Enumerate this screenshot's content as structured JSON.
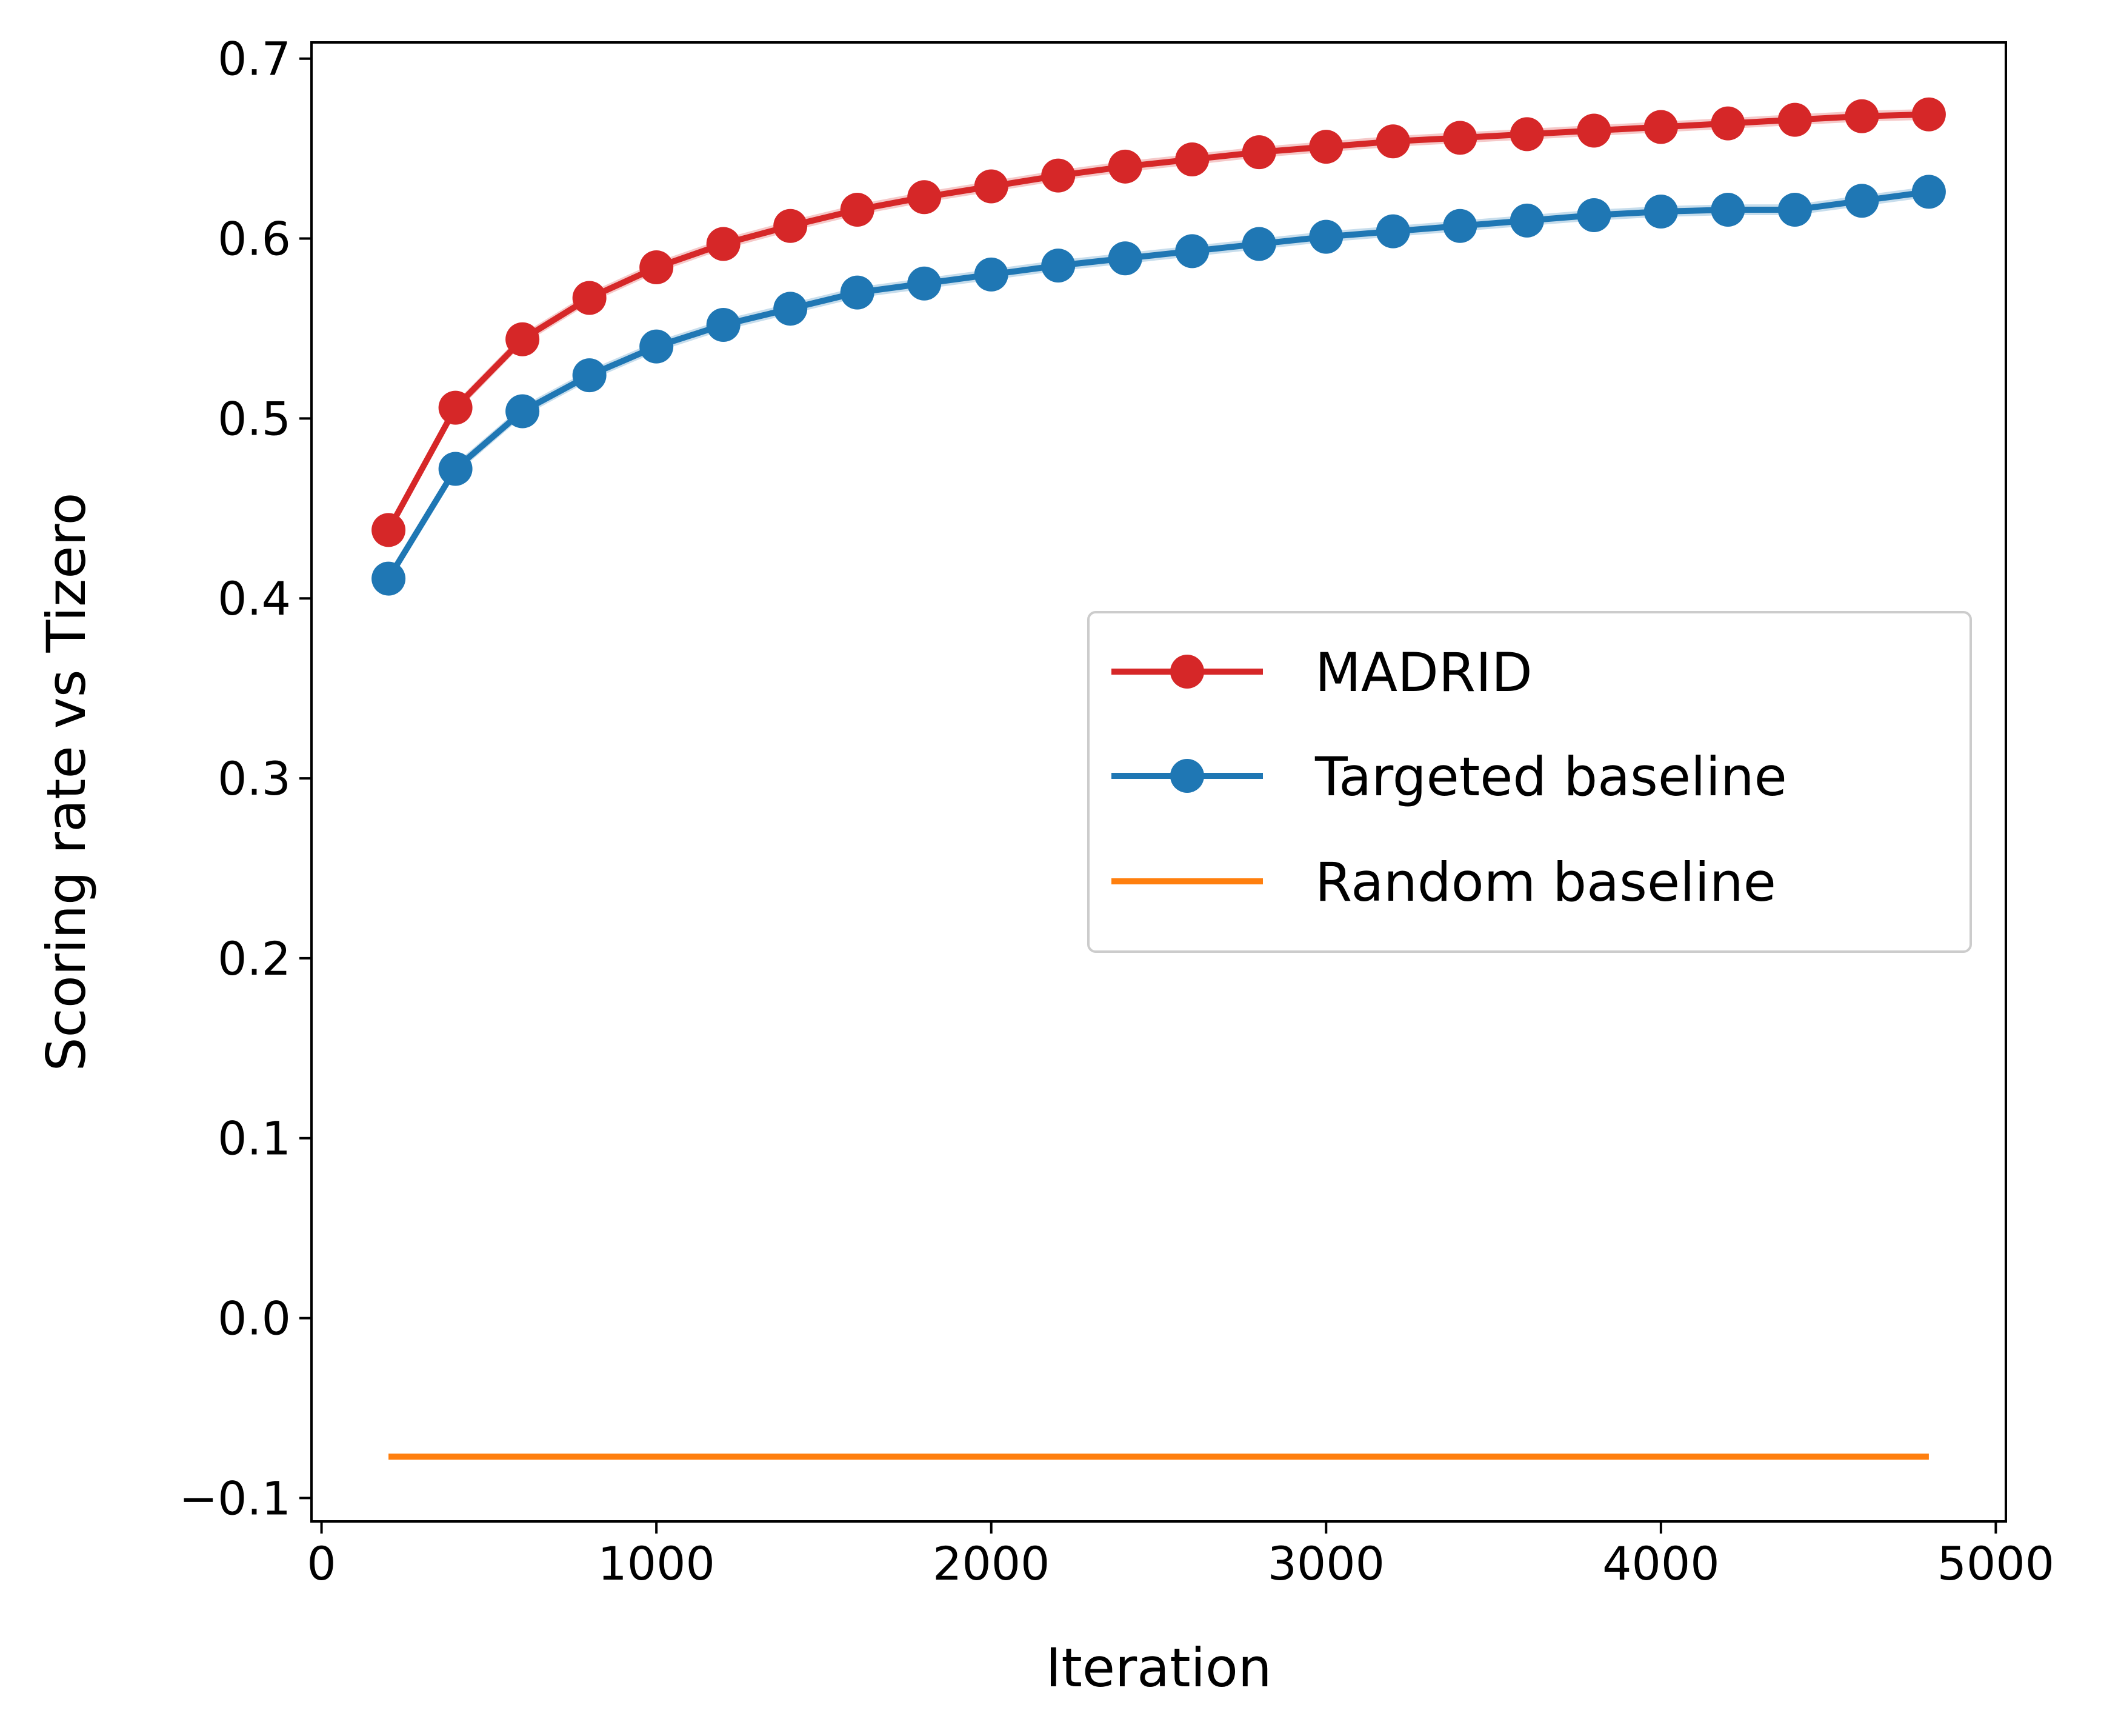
{
  "chart_data": {
    "type": "line",
    "title": "",
    "xlabel": "Iteration",
    "ylabel": "Scoring rate vs Tizero",
    "xlim": [
      -30,
      5030
    ],
    "ylim": [
      -0.113,
      0.709
    ],
    "xticks": [
      0,
      1000,
      2000,
      3000,
      4000,
      5000
    ],
    "xtick_labels": [
      "0",
      "1000",
      "2000",
      "3000",
      "4000",
      "5000"
    ],
    "yticks": [
      -0.1,
      0.0,
      0.1,
      0.2,
      0.3,
      0.4,
      0.5,
      0.6,
      0.7
    ],
    "ytick_labels": [
      "−0.1",
      "0.0",
      "0.1",
      "0.2",
      "0.3",
      "0.4",
      "0.5",
      "0.6",
      "0.7"
    ],
    "grid": false,
    "legend_position": "center-right",
    "series": [
      {
        "name": "MADRID",
        "color": "#d62728",
        "marker": "circle",
        "x": [
          200,
          400,
          600,
          800,
          1000,
          1200,
          1400,
          1600,
          1800,
          2000,
          2200,
          2400,
          2600,
          2800,
          3000,
          3200,
          3400,
          3600,
          3800,
          4000,
          4200,
          4400,
          4600,
          4800
        ],
        "values": [
          0.438,
          0.506,
          0.544,
          0.567,
          0.584,
          0.597,
          0.607,
          0.616,
          0.623,
          0.629,
          0.635,
          0.64,
          0.644,
          0.648,
          0.651,
          0.654,
          0.656,
          0.658,
          0.66,
          0.662,
          0.664,
          0.666,
          0.668,
          0.669
        ]
      },
      {
        "name": "Targeted baseline",
        "color": "#1f77b4",
        "marker": "circle",
        "x": [
          200,
          400,
          600,
          800,
          1000,
          1200,
          1400,
          1600,
          1800,
          2000,
          2200,
          2400,
          2600,
          2800,
          3000,
          3200,
          3400,
          3600,
          3800,
          4000,
          4200,
          4400,
          4600,
          4800
        ],
        "values": [
          0.411,
          0.472,
          0.504,
          0.524,
          0.54,
          0.552,
          0.561,
          0.57,
          0.575,
          0.58,
          0.585,
          0.589,
          0.593,
          0.597,
          0.601,
          0.604,
          0.607,
          0.61,
          0.613,
          0.615,
          0.616,
          0.616,
          0.621,
          0.626
        ]
      },
      {
        "name": "Random baseline",
        "color": "#ff7f0e",
        "marker": "none",
        "x": [
          200,
          4800
        ],
        "values": [
          -0.077,
          -0.077
        ]
      }
    ]
  }
}
